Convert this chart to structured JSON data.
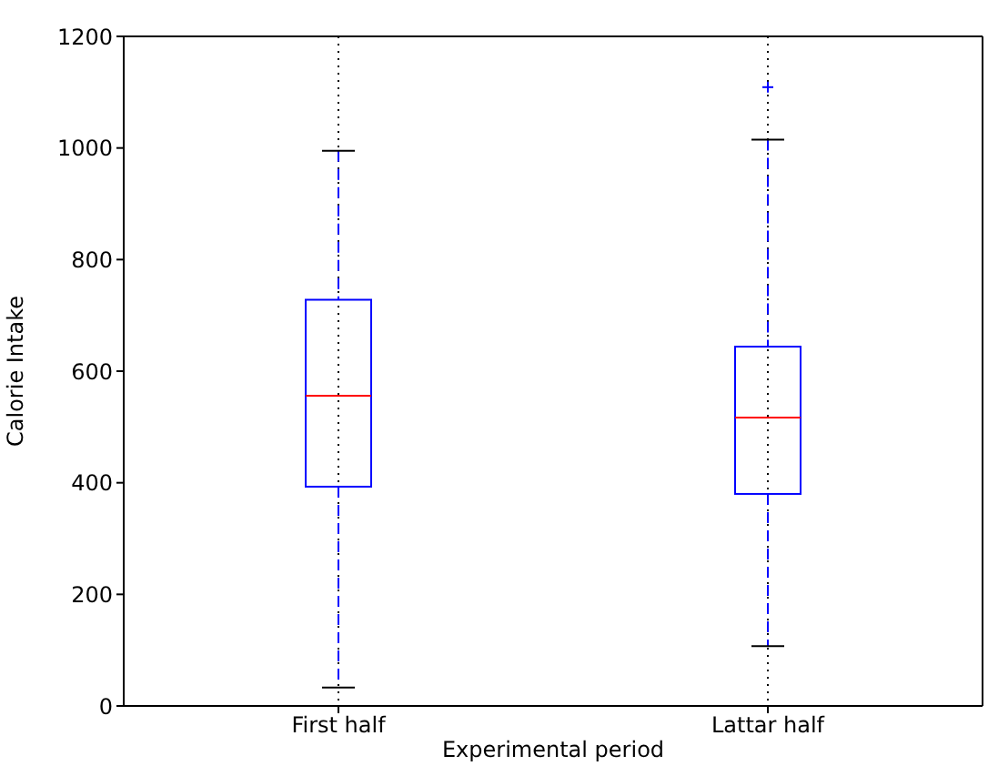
{
  "chart_data": {
    "type": "box",
    "xlabel": "Experimental period",
    "ylabel": "Calorie Intake",
    "categories": [
      "First half",
      "Lattar half"
    ],
    "series": [
      {
        "color": "#0000ff",
        "boxes": [
          {
            "low": 33,
            "q1": 393,
            "median": 556,
            "q3": 728,
            "high": 995
          },
          {
            "low": 107,
            "q1": 380,
            "median": 517,
            "q3": 644,
            "high": 1015,
            "outliers": [
              1109
            ]
          }
        ]
      }
    ],
    "ylim": [
      0,
      1200
    ],
    "yticks": [
      0,
      200,
      400,
      600,
      800,
      1000,
      1200
    ],
    "grid": true,
    "line_style": "dashed",
    "marker": "cross"
  }
}
